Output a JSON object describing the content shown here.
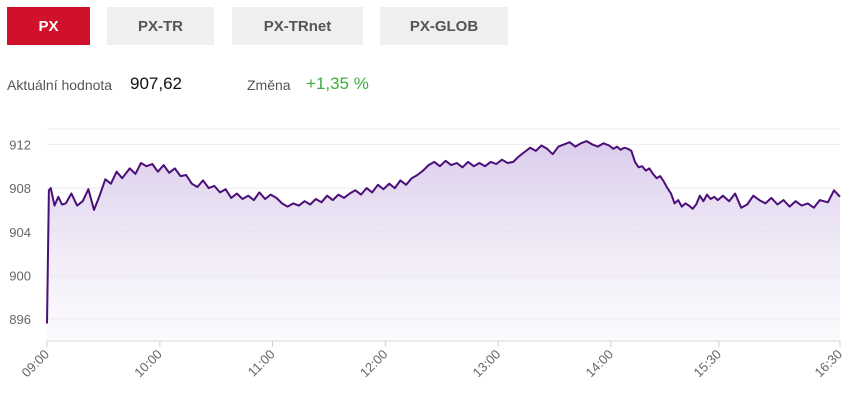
{
  "tabs": [
    {
      "label": "PX",
      "active": true
    },
    {
      "label": "PX-TR",
      "active": false
    },
    {
      "label": "PX-TRnet",
      "active": false
    },
    {
      "label": "PX-GLOB",
      "active": false
    }
  ],
  "summary": {
    "value_label": "Aktuální hodnota",
    "value": "907,62",
    "change_label": "Změna",
    "change": "+1,35 %"
  },
  "colors": {
    "active_tab": "#d0112b",
    "line": "#4b0f78",
    "fill": "#e4daf0",
    "change_positive": "#3cae3c"
  },
  "chart_data": {
    "type": "area",
    "ylim": [
      894,
      913.5
    ],
    "yticks": [
      896,
      900,
      904,
      908,
      912
    ],
    "ytick_labels": [
      "896",
      "900",
      "904",
      "908",
      "912"
    ],
    "xticks": [
      "09:00",
      "10:00",
      "11:00",
      "12:00",
      "13:00",
      "14:00",
      "15:30",
      "16:30"
    ],
    "grid": true,
    "series": [
      {
        "points": [
          [
            "09:00",
            895.6
          ],
          [
            "09:01",
            907.8
          ],
          [
            "09:02",
            908.0
          ],
          [
            "09:04",
            906.4
          ],
          [
            "09:06",
            907.2
          ],
          [
            "09:08",
            906.5
          ],
          [
            "09:10",
            906.6
          ],
          [
            "09:13",
            907.5
          ],
          [
            "09:16",
            906.4
          ],
          [
            "09:19",
            906.8
          ],
          [
            "09:22",
            907.9
          ],
          [
            "09:25",
            906.0
          ],
          [
            "09:28",
            907.3
          ],
          [
            "09:31",
            908.8
          ],
          [
            "09:34",
            908.4
          ],
          [
            "09:37",
            909.5
          ],
          [
            "09:40",
            908.9
          ],
          [
            "09:44",
            909.8
          ],
          [
            "09:47",
            909.3
          ],
          [
            "09:50",
            910.3
          ],
          [
            "09:53",
            910.0
          ],
          [
            "09:56",
            910.2
          ],
          [
            "09:59",
            909.5
          ],
          [
            "10:02",
            910.1
          ],
          [
            "10:05",
            909.4
          ],
          [
            "10:08",
            909.8
          ],
          [
            "10:11",
            909.1
          ],
          [
            "10:14",
            909.2
          ],
          [
            "10:17",
            908.4
          ],
          [
            "10:20",
            908.1
          ],
          [
            "10:23",
            908.7
          ],
          [
            "10:26",
            908.0
          ],
          [
            "10:29",
            908.2
          ],
          [
            "10:32",
            907.6
          ],
          [
            "10:35",
            907.9
          ],
          [
            "10:38",
            907.1
          ],
          [
            "10:41",
            907.5
          ],
          [
            "10:44",
            907.0
          ],
          [
            "10:47",
            907.3
          ],
          [
            "10:50",
            906.9
          ],
          [
            "10:53",
            907.6
          ],
          [
            "10:56",
            907.0
          ],
          [
            "10:59",
            907.4
          ],
          [
            "11:02",
            907.1
          ],
          [
            "11:05",
            906.6
          ],
          [
            "11:08",
            906.3
          ],
          [
            "11:11",
            906.6
          ],
          [
            "11:14",
            906.4
          ],
          [
            "11:17",
            906.8
          ],
          [
            "11:20",
            906.5
          ],
          [
            "11:23",
            907.0
          ],
          [
            "11:26",
            906.7
          ],
          [
            "11:29",
            907.3
          ],
          [
            "11:32",
            906.9
          ],
          [
            "11:35",
            907.4
          ],
          [
            "11:38",
            907.1
          ],
          [
            "11:41",
            907.5
          ],
          [
            "11:44",
            907.8
          ],
          [
            "11:47",
            907.4
          ],
          [
            "11:50",
            908.0
          ],
          [
            "11:53",
            907.6
          ],
          [
            "11:56",
            908.3
          ],
          [
            "11:59",
            907.9
          ],
          [
            "12:02",
            908.4
          ],
          [
            "12:05",
            908.0
          ],
          [
            "12:08",
            908.7
          ],
          [
            "12:11",
            908.3
          ],
          [
            "12:14",
            908.9
          ],
          [
            "12:17",
            909.2
          ],
          [
            "12:20",
            909.6
          ],
          [
            "12:23",
            910.1
          ],
          [
            "12:26",
            910.4
          ],
          [
            "12:29",
            910.0
          ],
          [
            "12:32",
            910.5
          ],
          [
            "12:35",
            910.1
          ],
          [
            "12:38",
            910.3
          ],
          [
            "12:41",
            909.9
          ],
          [
            "12:44",
            910.4
          ],
          [
            "12:47",
            910.0
          ],
          [
            "12:50",
            910.3
          ],
          [
            "12:53",
            910.0
          ],
          [
            "12:56",
            910.4
          ],
          [
            "12:59",
            910.2
          ],
          [
            "13:02",
            910.6
          ],
          [
            "13:05",
            910.3
          ],
          [
            "13:08",
            910.4
          ],
          [
            "13:11",
            910.9
          ],
          [
            "13:14",
            911.3
          ],
          [
            "13:17",
            911.7
          ],
          [
            "13:20",
            911.4
          ],
          [
            "13:23",
            911.9
          ],
          [
            "13:26",
            911.6
          ],
          [
            "13:29",
            911.1
          ],
          [
            "13:32",
            911.8
          ],
          [
            "13:35",
            912.0
          ],
          [
            "13:38",
            912.2
          ],
          [
            "13:41",
            911.8
          ],
          [
            "13:44",
            912.1
          ],
          [
            "13:47",
            912.3
          ],
          [
            "13:50",
            912.0
          ],
          [
            "13:53",
            911.8
          ],
          [
            "13:56",
            912.1
          ],
          [
            "13:59",
            911.9
          ],
          [
            "14:02",
            911.6
          ],
          [
            "14:05",
            911.8
          ],
          [
            "14:08",
            911.5
          ],
          [
            "14:11",
            911.7
          ],
          [
            "14:14",
            911.6
          ],
          [
            "14:17",
            911.4
          ],
          [
            "14:20",
            910.4
          ],
          [
            "14:23",
            909.9
          ],
          [
            "14:26",
            910.0
          ],
          [
            "14:29",
            909.6
          ],
          [
            "14:32",
            909.8
          ],
          [
            "14:35",
            909.3
          ],
          [
            "14:38",
            908.9
          ],
          [
            "14:41",
            909.1
          ],
          [
            "14:44",
            908.6
          ],
          [
            "14:47",
            908.0
          ],
          [
            "14:50",
            907.5
          ],
          [
            "14:53",
            906.6
          ],
          [
            "14:56",
            906.9
          ],
          [
            "14:59",
            906.3
          ],
          [
            "15:02",
            906.6
          ],
          [
            "15:05",
            906.4
          ],
          [
            "15:08",
            906.1
          ],
          [
            "15:11",
            906.5
          ],
          [
            "15:14",
            907.3
          ],
          [
            "15:17",
            906.8
          ],
          [
            "15:20",
            907.4
          ],
          [
            "15:23",
            907.0
          ],
          [
            "15:26",
            907.2
          ],
          [
            "15:29",
            906.9
          ],
          [
            "15:32",
            907.3
          ],
          [
            "15:35",
            906.8
          ],
          [
            "15:38",
            907.5
          ],
          [
            "15:41",
            906.2
          ],
          [
            "15:44",
            906.5
          ],
          [
            "15:47",
            907.3
          ],
          [
            "15:50",
            906.9
          ],
          [
            "15:53",
            906.6
          ],
          [
            "15:56",
            907.1
          ],
          [
            "15:59",
            906.5
          ],
          [
            "16:02",
            906.9
          ],
          [
            "16:05",
            906.3
          ],
          [
            "16:08",
            906.8
          ],
          [
            "16:11",
            906.4
          ],
          [
            "16:14",
            906.6
          ],
          [
            "16:17",
            906.2
          ],
          [
            "16:20",
            906.9
          ],
          [
            "16:24",
            906.7
          ],
          [
            "16:27",
            907.8
          ],
          [
            "16:30",
            907.2
          ]
        ]
      }
    ]
  }
}
